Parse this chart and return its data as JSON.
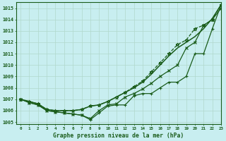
{
  "title": "Graphe pression niveau de la mer (hPa)",
  "bg_color": "#c8eef0",
  "grid_color": "#b0d8cc",
  "line_color": "#1a5c1a",
  "xlim": [
    -0.5,
    23
  ],
  "ylim": [
    1004.8,
    1015.5
  ],
  "yticks": [
    1005,
    1006,
    1007,
    1008,
    1009,
    1010,
    1011,
    1012,
    1013,
    1014,
    1015
  ],
  "xticks": [
    0,
    1,
    2,
    3,
    4,
    5,
    6,
    7,
    8,
    9,
    10,
    11,
    12,
    13,
    14,
    15,
    16,
    17,
    18,
    19,
    20,
    21,
    22,
    23
  ],
  "series": [
    {
      "x": [
        0,
        1,
        2,
        3,
        4,
        5,
        6,
        7,
        8,
        9,
        10,
        11,
        12,
        13,
        14,
        15,
        16,
        17,
        18,
        19,
        20,
        21,
        22,
        23
      ],
      "y": [
        1007.0,
        1006.7,
        1006.5,
        1006.0,
        1005.9,
        1005.8,
        1005.7,
        1005.6,
        1005.2,
        1005.8,
        1006.4,
        1006.5,
        1006.5,
        1007.3,
        1007.5,
        1007.5,
        1008.0,
        1008.5,
        1008.5,
        1009.0,
        1011.0,
        1011.0,
        1013.2,
        1015.3
      ],
      "marker": "+",
      "markersize": 3.5,
      "linewidth": 0.9,
      "linestyle": "-"
    },
    {
      "x": [
        0,
        1,
        2,
        3,
        4,
        5,
        6,
        7,
        8,
        9,
        10,
        11,
        12,
        13,
        14,
        15,
        16,
        17,
        18,
        19,
        20,
        21,
        22,
        23
      ],
      "y": [
        1007.0,
        1006.7,
        1006.5,
        1006.0,
        1005.9,
        1005.8,
        1005.7,
        1005.6,
        1005.3,
        1006.0,
        1006.5,
        1006.6,
        1007.2,
        1007.5,
        1007.9,
        1008.4,
        1009.0,
        1009.5,
        1010.0,
        1011.5,
        1012.0,
        1013.5,
        1014.0,
        1015.0
      ],
      "marker": "x",
      "markersize": 3.5,
      "linewidth": 0.9,
      "linestyle": "-"
    },
    {
      "x": [
        0,
        1,
        2,
        3,
        4,
        5,
        6,
        7,
        8,
        9,
        10,
        11,
        12,
        13,
        14,
        15,
        16,
        17,
        18,
        19,
        20,
        21,
        22,
        23
      ],
      "y": [
        1007.0,
        1006.8,
        1006.6,
        1006.1,
        1006.0,
        1006.0,
        1006.0,
        1006.1,
        1006.4,
        1006.5,
        1006.8,
        1007.2,
        1007.6,
        1008.0,
        1008.5,
        1009.2,
        1010.0,
        1010.8,
        1011.5,
        1012.0,
        1012.5,
        1013.2,
        1014.1,
        1015.3
      ],
      "marker": null,
      "markersize": 0,
      "linewidth": 1.1,
      "linestyle": "-"
    },
    {
      "x": [
        0,
        1,
        2,
        3,
        4,
        5,
        6,
        7,
        8,
        9,
        10,
        11,
        12,
        13,
        14,
        15,
        16,
        17,
        18,
        19,
        20,
        21,
        22,
        23
      ],
      "y": [
        1007.0,
        1006.8,
        1006.6,
        1006.1,
        1006.0,
        1006.0,
        1006.0,
        1006.1,
        1006.4,
        1006.5,
        1006.8,
        1007.2,
        1007.6,
        1008.1,
        1008.6,
        1009.4,
        1010.2,
        1011.0,
        1011.8,
        1012.2,
        1013.2,
        1013.5,
        1014.0,
        1015.3
      ],
      "marker": "*",
      "markersize": 3.5,
      "linewidth": 0.9,
      "linestyle": "--"
    }
  ]
}
